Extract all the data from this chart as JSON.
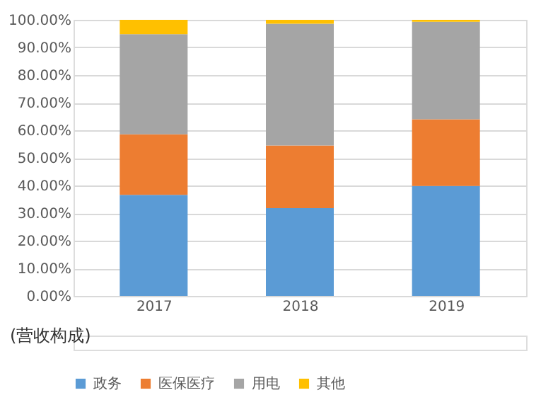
{
  "chart_data": {
    "type": "bar",
    "stacked": true,
    "categories": [
      "2017",
      "2018",
      "2019"
    ],
    "series": [
      {
        "name": "政务",
        "color": "#5b9bd5",
        "values": [
          36.6,
          31.8,
          39.8
        ]
      },
      {
        "name": "医保医疗",
        "color": "#ed7d31",
        "values": [
          21.9,
          22.7,
          24.2
        ]
      },
      {
        "name": "用电",
        "color": "#a5a5a5",
        "values": [
          36.3,
          44.1,
          35.3
        ]
      },
      {
        "name": "其他",
        "color": "#ffc000",
        "values": [
          5.2,
          1.4,
          0.7
        ]
      }
    ],
    "ylim": [
      0,
      100
    ],
    "yticks": [
      {
        "value": 0,
        "label": "0.00%"
      },
      {
        "value": 10,
        "label": "10.00%"
      },
      {
        "value": 20,
        "label": "20.00%"
      },
      {
        "value": 30,
        "label": "30.00%"
      },
      {
        "value": 40,
        "label": "40.00%"
      },
      {
        "value": 50,
        "label": "50.00%"
      },
      {
        "value": 60,
        "label": "60.00%"
      },
      {
        "value": 70,
        "label": "70.00%"
      },
      {
        "value": 80,
        "label": "80.00%"
      },
      {
        "value": 90,
        "label": "90.00%"
      },
      {
        "value": 100,
        "label": "100.00%"
      }
    ],
    "grid": "y",
    "legend": "bottom",
    "annotations": [
      "(营收构成)"
    ]
  }
}
